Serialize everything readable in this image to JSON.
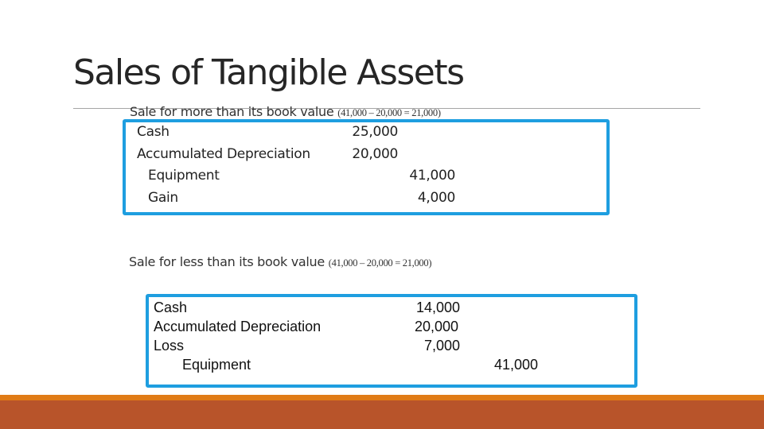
{
  "title": "Sales of Tangible Assets",
  "section1": {
    "heading": "Sale for more than its book value",
    "calc": "(41,000 – 20,000 = 21,000)",
    "entries": [
      {
        "account": "Cash",
        "debit": "25,000",
        "credit": ""
      },
      {
        "account": "Accumulated Depreciation",
        "debit": "20,000",
        "credit": ""
      },
      {
        "account": "Equipment",
        "debit": "",
        "credit": "41,000"
      },
      {
        "account": "Gain",
        "debit": "",
        "credit": "4,000"
      }
    ]
  },
  "section2": {
    "heading": "Sale for less than its book value",
    "calc": "(41,000 – 20,000 = 21,000)",
    "entries": [
      {
        "account": "Cash",
        "debit": "14,000",
        "credit": ""
      },
      {
        "account": "Accumulated Depreciation",
        "debit": "20,000",
        "credit": ""
      },
      {
        "account": "Loss",
        "debit": "7,000",
        "credit": ""
      },
      {
        "account": "Equipment",
        "debit": "",
        "credit": "41,000"
      }
    ]
  },
  "colors": {
    "box_border": "#1e9ee0",
    "footer_orange": "#e07b16",
    "footer_rust": "#b8542a",
    "rule": "#a6a6a6"
  }
}
